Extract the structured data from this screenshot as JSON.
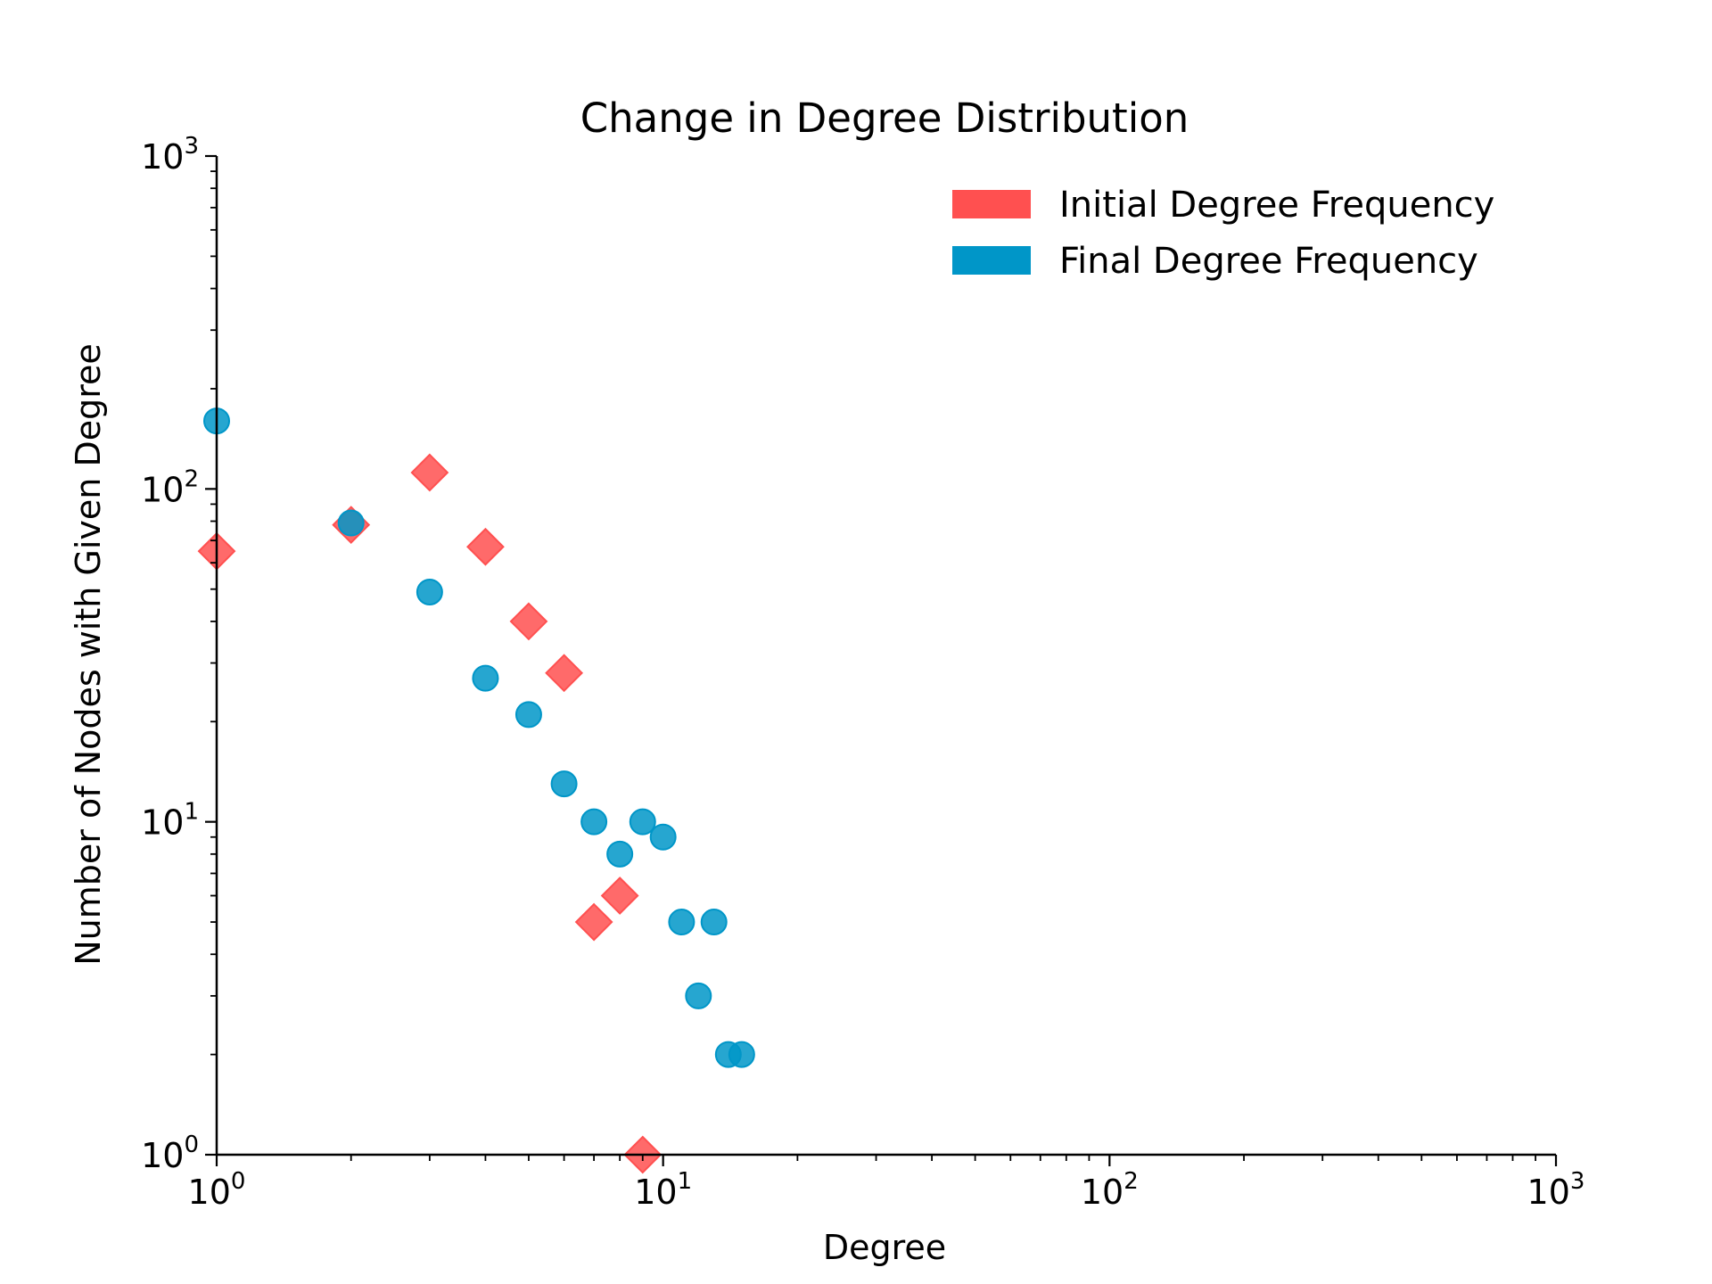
{
  "chart_data": {
    "type": "scatter",
    "title": "Change in Degree Distribution",
    "xlabel": "Degree",
    "ylabel": "Number of Nodes with Given Degree",
    "xscale": "log",
    "yscale": "log",
    "xlim": [
      1,
      1000
    ],
    "ylim": [
      1,
      1000
    ],
    "xticks": [
      {
        "base": "10",
        "exp": "0"
      },
      {
        "base": "10",
        "exp": "1"
      },
      {
        "base": "10",
        "exp": "2"
      },
      {
        "base": "10",
        "exp": "3"
      }
    ],
    "yticks": [
      {
        "base": "10",
        "exp": "0"
      },
      {
        "base": "10",
        "exp": "1"
      },
      {
        "base": "10",
        "exp": "2"
      },
      {
        "base": "10",
        "exp": "3"
      }
    ],
    "grid": false,
    "legend_position": "top-right",
    "series": [
      {
        "name": "Initial Degree Frequency",
        "marker": "diamond",
        "color": "#ff5050",
        "points": [
          {
            "x": 1,
            "y": 65
          },
          {
            "x": 2,
            "y": 78
          },
          {
            "x": 3,
            "y": 112
          },
          {
            "x": 4,
            "y": 67
          },
          {
            "x": 5,
            "y": 40
          },
          {
            "x": 6,
            "y": 28
          },
          {
            "x": 7,
            "y": 5
          },
          {
            "x": 8,
            "y": 6
          },
          {
            "x": 9,
            "y": 1
          }
        ]
      },
      {
        "name": "Final Degree Frequency",
        "marker": "circle",
        "color": "#0096c8",
        "points": [
          {
            "x": 1,
            "y": 160
          },
          {
            "x": 2,
            "y": 79
          },
          {
            "x": 3,
            "y": 49
          },
          {
            "x": 4,
            "y": 27
          },
          {
            "x": 5,
            "y": 21
          },
          {
            "x": 6,
            "y": 13
          },
          {
            "x": 7,
            "y": 10
          },
          {
            "x": 8,
            "y": 8
          },
          {
            "x": 9,
            "y": 10
          },
          {
            "x": 10,
            "y": 9
          },
          {
            "x": 11,
            "y": 5
          },
          {
            "x": 12,
            "y": 3
          },
          {
            "x": 13,
            "y": 5
          },
          {
            "x": 14,
            "y": 2
          },
          {
            "x": 15,
            "y": 2
          }
        ]
      }
    ]
  }
}
